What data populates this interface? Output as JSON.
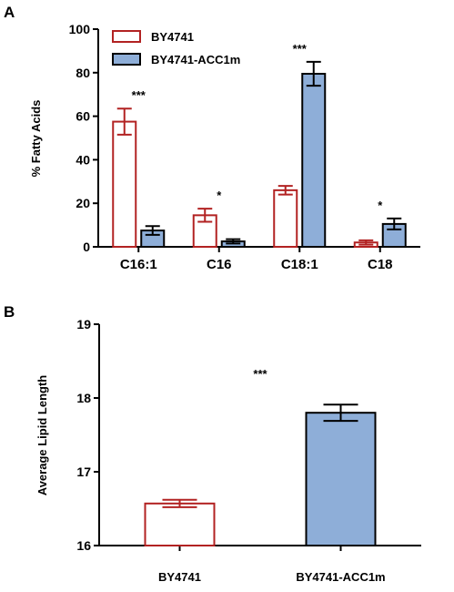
{
  "panels": [
    {
      "letter": "A"
    },
    {
      "letter": "B"
    }
  ],
  "chart_data": [
    {
      "type": "bar",
      "categories": [
        "C16:1",
        "C16",
        "C18:1",
        "C18"
      ],
      "series": [
        {
          "name": "BY4741",
          "values": [
            57.5,
            14.5,
            26,
            2
          ],
          "errors": [
            6,
            3,
            2,
            1
          ],
          "fill": "#ffffff",
          "stroke": "#b22222"
        },
        {
          "name": "BY4741-ACC1m",
          "values": [
            7.5,
            2.5,
            79.5,
            10.5
          ],
          "errors": [
            2,
            1,
            5.5,
            2.5
          ],
          "fill": "#8eaed8",
          "stroke": "#000000"
        }
      ],
      "significance": [
        "***",
        "*",
        "***",
        "*"
      ],
      "ylabel": "% Fatty Acids",
      "ylim": [
        0,
        100
      ],
      "yticks": [
        0,
        20,
        40,
        60,
        80,
        100
      ],
      "legend_placement": "top-left",
      "grid": false
    },
    {
      "type": "bar",
      "categories": [
        "BY4741",
        "BY4741-ACC1m"
      ],
      "values": [
        16.57,
        17.8
      ],
      "errors": [
        0.05,
        0.11
      ],
      "fills": [
        "#ffffff",
        "#8eaed8"
      ],
      "strokes": [
        "#b22222",
        "#000000"
      ],
      "significance": "***",
      "ylabel": "Average Lipid Length",
      "ylim": [
        16,
        19
      ],
      "yticks": [
        16,
        17,
        18,
        19
      ],
      "grid": false
    }
  ]
}
